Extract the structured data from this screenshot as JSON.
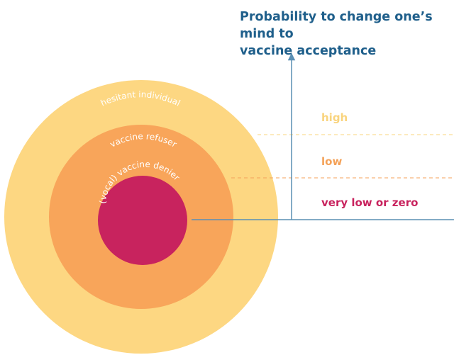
{
  "heading": {
    "line1": "Probability to change one’s mind to",
    "line2": "vaccine acceptance"
  },
  "rings": [
    {
      "label": "hesitant individual",
      "color": "#fdd782"
    },
    {
      "label": "vaccine refuser",
      "color": "#f8a55a"
    },
    {
      "label": "(vocal) vaccine denier",
      "color": "#c8235e"
    }
  ],
  "levels": [
    {
      "label": "high",
      "color": "#f9d47e"
    },
    {
      "label": "low",
      "color": "#f4a259"
    },
    {
      "label": "very low or zero",
      "color": "#c8235e"
    }
  ],
  "axis_color": "#5a8fb4"
}
